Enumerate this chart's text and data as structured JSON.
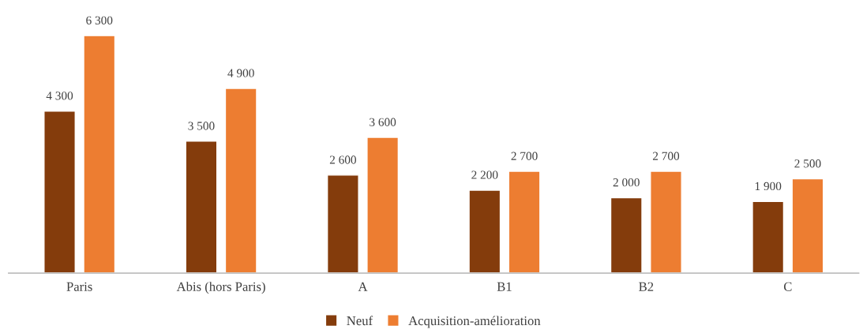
{
  "chart_data": {
    "type": "bar",
    "categories": [
      "Paris",
      "Abis (hors Paris)",
      "A",
      "B1",
      "B2",
      "C"
    ],
    "series": [
      {
        "name": "Neuf",
        "color": "#843c0c",
        "values": [
          4300,
          3500,
          2600,
          2200,
          2000,
          1900
        ],
        "value_labels": [
          "4 300",
          "3 500",
          "2 600",
          "2 200",
          "2 000",
          "1 900"
        ]
      },
      {
        "name": "Acquisition-amélioration",
        "color": "#ed7d31",
        "values": [
          6300,
          4900,
          3600,
          2700,
          2700,
          2500
        ],
        "value_labels": [
          "6 300",
          "4 900",
          "3 600",
          "2 700",
          "2 700",
          "2 500"
        ]
      }
    ],
    "legend": "bottom",
    "grid": false
  }
}
